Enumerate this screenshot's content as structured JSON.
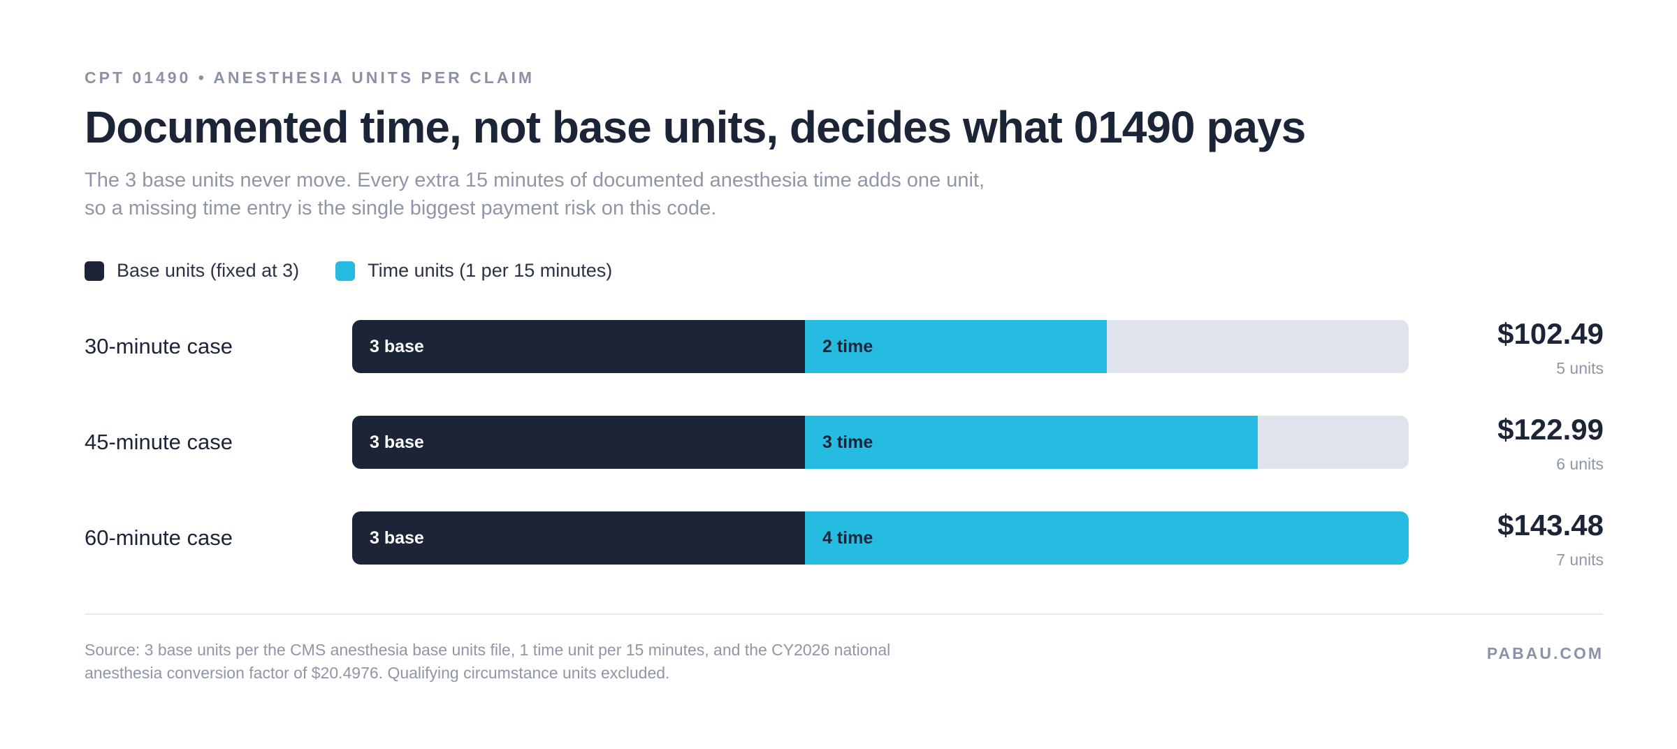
{
  "header": {
    "eyebrow": "CPT 01490 • ANESTHESIA UNITS PER CLAIM",
    "title": "Documented time, not base units, decides what 01490 pays",
    "subtitle_line1": "The 3 base units never move. Every extra 15 minutes of documented anesthesia time adds one unit,",
    "subtitle_line2": "so a missing time entry is the single biggest payment risk on this code."
  },
  "colors": {
    "base": "#1c2438",
    "time": "#26bce2",
    "track": "#dfe3ec"
  },
  "chart_data": {
    "type": "bar",
    "orientation": "horizontal",
    "stacked": true,
    "categories": [
      "30-minute case",
      "45-minute case",
      "60-minute case"
    ],
    "series": [
      {
        "name": "Base units (fixed at 3)",
        "values": [
          3,
          3,
          3
        ],
        "labels": [
          "3 base",
          "3 base",
          "3 base"
        ]
      },
      {
        "name": "Time units (1 per 15 minutes)",
        "values": [
          2,
          3,
          4
        ],
        "labels": [
          "2 time",
          "3 time",
          "4 time"
        ]
      }
    ],
    "xlim": [
      0,
      7
    ],
    "payments": [
      "$102.49",
      "$122.99",
      "$143.48"
    ],
    "total_units": [
      "5 units",
      "6 units",
      "7 units"
    ],
    "legend": "top-left",
    "grid": false
  },
  "footer": {
    "source_line1": "Source: 3 base units per the CMS anesthesia base units file, 1 time unit per 15 minutes, and the CY2026 national",
    "source_line2": "anesthesia conversion factor of $20.4976. Qualifying circumstance units excluded.",
    "brand": "PABAU.COM"
  }
}
